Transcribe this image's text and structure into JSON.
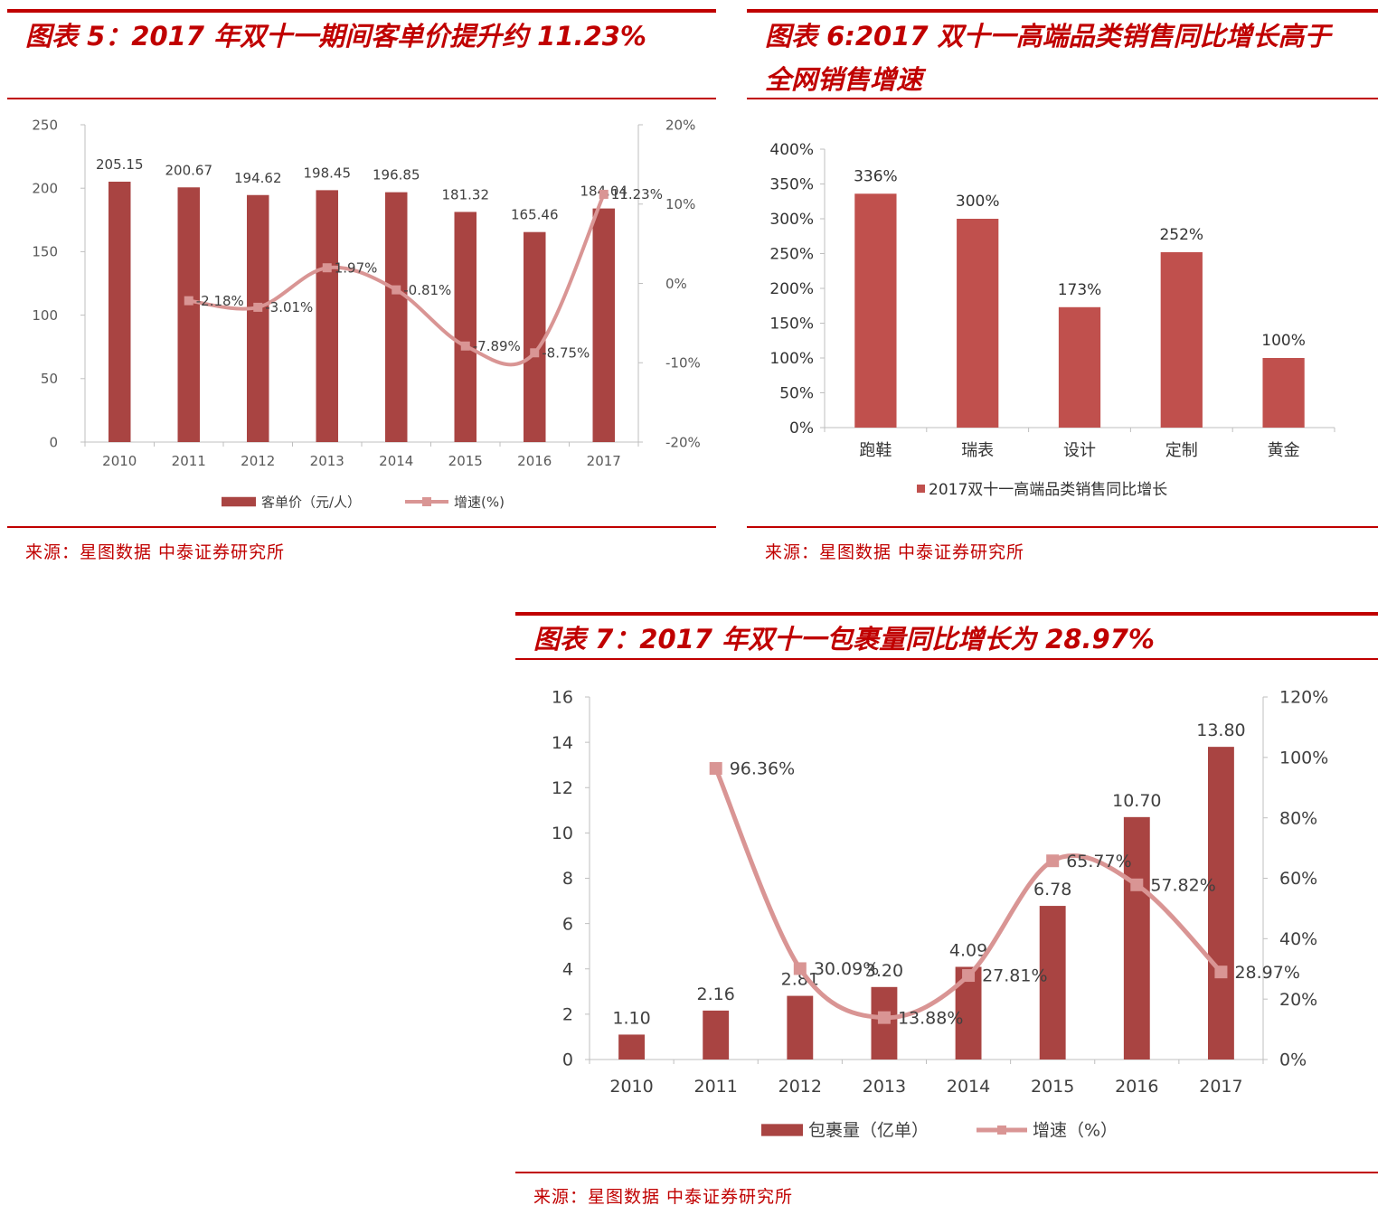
{
  "colors": {
    "accent": "#c00000",
    "bar": "#a94442",
    "bar6": "#c0504d",
    "line": "#d99594"
  },
  "figures": [
    {
      "title": "图表 5：2017 年双十一期间客单价提升约 11.23%",
      "source": "来源：星图数据  中泰证券研究所",
      "chart_data": {
        "type": "bar",
        "categories": [
          "2010",
          "2011",
          "2012",
          "2013",
          "2014",
          "2015",
          "2016",
          "2017"
        ],
        "series": [
          {
            "name": "客单价（元/人）",
            "type": "bar",
            "axis": "left",
            "values": [
              205.15,
              200.67,
              194.62,
              198.45,
              196.85,
              181.32,
              165.46,
              184.04
            ],
            "labels": [
              "205.15",
              "200.67",
              "194.62",
              "198.45",
              "196.85",
              "181.32",
              "165.46",
              "184.04"
            ]
          },
          {
            "name": "增速(%)",
            "type": "line",
            "axis": "right",
            "values": [
              null,
              -2.18,
              -3.01,
              1.97,
              -0.81,
              -7.89,
              -8.75,
              11.23
            ],
            "labels": [
              "",
              "-2.18%",
              "-3.01%",
              "1.97%",
              "-0.81%",
              "-7.89%",
              "-8.75%",
              "11.23%"
            ]
          }
        ],
        "ylim_left": [
          0,
          250
        ],
        "yticks_left": [
          "0",
          "50",
          "100",
          "150",
          "200",
          "250"
        ],
        "ylim_right": [
          -20,
          20
        ],
        "yticks_right": [
          "-20%",
          "-10%",
          "0%",
          "10%",
          "20%"
        ],
        "legend": "bottom"
      }
    },
    {
      "title_lines": [
        "图表 6:2017 双十一高端品类销售同比增长高于",
        "全网销售增速"
      ],
      "source": "来源：星图数据  中泰证券研究所",
      "chart_data": {
        "type": "bar",
        "categories": [
          "跑鞋",
          "瑞表",
          "设计",
          "定制",
          "黄金"
        ],
        "series": [
          {
            "name": "2017双十一高端品类销售同比增长",
            "values": [
              336,
              300,
              173,
              252,
              100
            ],
            "labels": [
              "336%",
              "300%",
              "173%",
              "252%",
              "100%"
            ]
          }
        ],
        "ylim": [
          0,
          400
        ],
        "yticks": [
          "0%",
          "50%",
          "100%",
          "150%",
          "200%",
          "250%",
          "300%",
          "350%",
          "400%"
        ],
        "legend": "bottom"
      }
    },
    {
      "title": "图表 7：2017 年双十一包裹量同比增长为 28.97%",
      "source": "来源：星图数据  中泰证券研究所",
      "chart_data": {
        "type": "bar",
        "categories": [
          "2010",
          "2011",
          "2012",
          "2013",
          "2014",
          "2015",
          "2016",
          "2017"
        ],
        "series": [
          {
            "name": "包裹量（亿单）",
            "type": "bar",
            "axis": "left",
            "values": [
              1.1,
              2.16,
              2.81,
              3.2,
              4.09,
              6.78,
              10.7,
              13.8
            ],
            "labels": [
              "1.10",
              "2.16",
              "2.81",
              "3.20",
              "4.09",
              "6.78",
              "10.70",
              "13.80"
            ]
          },
          {
            "name": "增速（%）",
            "type": "line",
            "axis": "right",
            "values": [
              null,
              96.36,
              30.09,
              13.88,
              27.81,
              65.77,
              57.82,
              28.97
            ],
            "labels": [
              "",
              "96.36%",
              "30.09%",
              "13.88%",
              "27.81%",
              "65.77%",
              "57.82%",
              "28.97%"
            ]
          }
        ],
        "ylim_left": [
          0,
          16
        ],
        "yticks_left": [
          "0",
          "2",
          "4",
          "6",
          "8",
          "10",
          "12",
          "14",
          "16"
        ],
        "ylim_right": [
          0,
          120
        ],
        "yticks_right": [
          "0%",
          "20%",
          "40%",
          "60%",
          "80%",
          "100%",
          "120%"
        ],
        "legend": "bottom"
      }
    }
  ]
}
